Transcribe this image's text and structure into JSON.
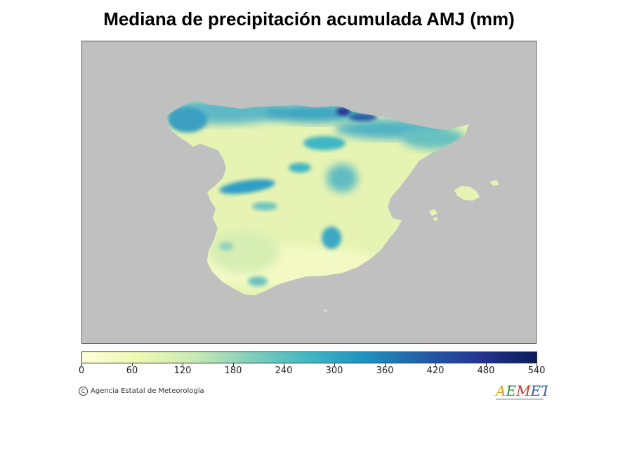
{
  "title": "Mediana de precipitación acumulada AMJ (mm)",
  "map": {
    "background_color": "#c0c0c0",
    "land_base_color": "#e6f3b3",
    "wet_color": "#41b6c4",
    "very_wet_color": "#253494"
  },
  "colorbar": {
    "min": 0,
    "max": 540,
    "ticks": [
      "0",
      "60",
      "120",
      "180",
      "240",
      "300",
      "360",
      "420",
      "480",
      "540"
    ],
    "colors": [
      "#ffffd9",
      "#edf8b1",
      "#c7e9b4",
      "#7fcdbb",
      "#41b6c4",
      "#1d91c0",
      "#225ea8",
      "#253494",
      "#081d58"
    ]
  },
  "credit": {
    "symbol": "C",
    "text": "Agencia Estatal de Meteorología"
  },
  "logo": {
    "text": "AEMET",
    "colors": [
      "#e3a21a",
      "#2e8b3a",
      "#c0392b",
      "#1f5fa8"
    ]
  }
}
